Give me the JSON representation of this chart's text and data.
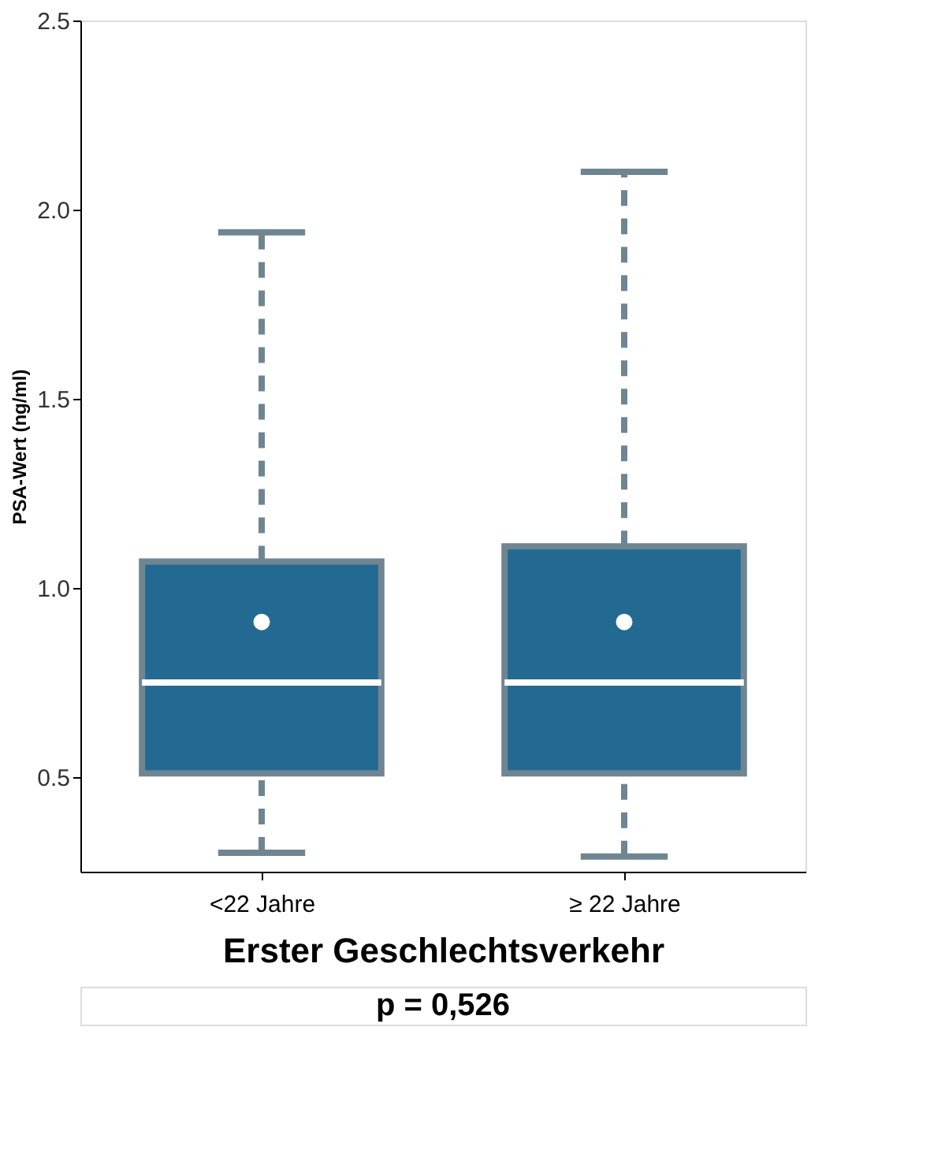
{
  "chart_data": {
    "type": "box",
    "categories": [
      "<22 Jahre",
      "≥ 22 Jahre"
    ],
    "xlabel": "Erster Geschlechtsverkehr",
    "ylabel": "PSA-Wert (ng/ml)",
    "ylim": [
      0.25,
      2.5
    ],
    "yticks": [
      0.5,
      {
        "value": 1,
        "label": "1.0"
      },
      1.5,
      {
        "value": 2,
        "label": "2.0"
      },
      2.5
    ],
    "grid": false,
    "series": [
      {
        "color": "#236a93",
        "boxes": [
          {
            "low": 0.3,
            "q1": 0.51,
            "median": 0.75,
            "q3": 1.07,
            "high": 1.94,
            "mean": 0.91
          },
          {
            "low": 0.29,
            "q1": 0.51,
            "median": 0.75,
            "q3": 1.11,
            "high": 2.1,
            "mean": 0.91
          }
        ]
      }
    ],
    "annotations": [
      "p = 0,526"
    ]
  }
}
